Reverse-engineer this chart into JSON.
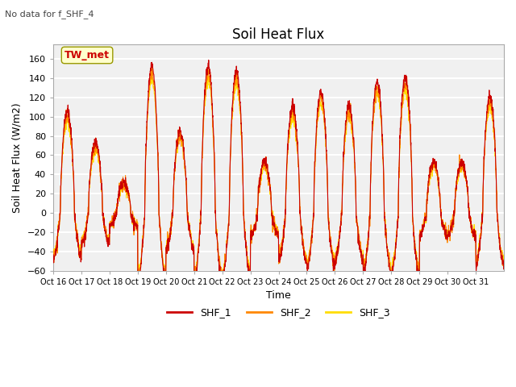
{
  "title": "Soil Heat Flux",
  "subtitle": "No data for f_SHF_4",
  "ylabel": "Soil Heat Flux (W/m2)",
  "xlabel": "Time",
  "ylim": [
    -60,
    175
  ],
  "yticks": [
    -60,
    -40,
    -20,
    0,
    20,
    40,
    60,
    80,
    100,
    120,
    140,
    160
  ],
  "xtick_labels": [
    "Oct 16",
    "Oct 17",
    "Oct 18",
    "Oct 19",
    "Oct 20",
    "Oct 21",
    "Oct 22",
    "Oct 23",
    "Oct 24",
    "Oct 25",
    "Oct 26",
    "Oct 27",
    "Oct 28",
    "Oct 29",
    "Oct 30",
    "Oct 31"
  ],
  "legend_labels": [
    "SHF_1",
    "SHF_2",
    "SHF_3"
  ],
  "colors": [
    "#cc0000",
    "#ff8800",
    "#ffdd00"
  ],
  "plot_bg_color": "#f0f0f0",
  "annotation_box_color": "#ffffcc",
  "annotation_text": "TW_met",
  "annotation_text_color": "#cc0000",
  "n_days": 16,
  "title_fontsize": 12,
  "label_fontsize": 9,
  "tick_fontsize": 8
}
